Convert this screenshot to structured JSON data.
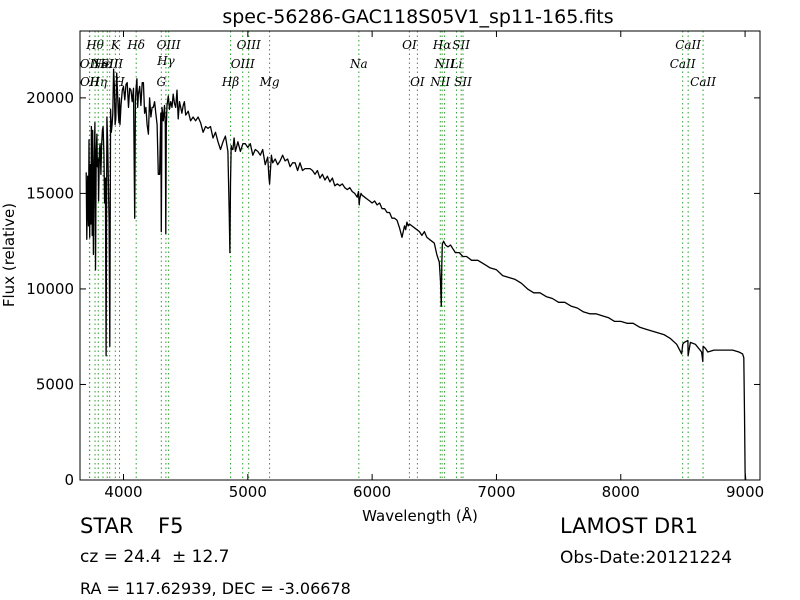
{
  "chart_data": {
    "type": "line",
    "title": "spec-56286-GAC118S05V1_sp11-165.fits",
    "xlabel": "Wavelength (Å)",
    "ylabel": "Flux (relative)",
    "xlim": [
      3650,
      9120
    ],
    "ylim": [
      0,
      23500
    ],
    "xticks": [
      4000,
      5000,
      6000,
      7000,
      8000,
      9000
    ],
    "yticks": [
      0,
      5000,
      10000,
      15000,
      20000
    ],
    "grid": false,
    "line_color": "#000000",
    "marker_color": "#2ca02c",
    "series": [
      {
        "x": [
          3700,
          3705,
          3712,
          3718,
          3722,
          3728,
          3734,
          3738,
          3742,
          3748,
          3752,
          3758,
          3764,
          3770,
          3775,
          3780,
          3786,
          3790,
          3796,
          3800,
          3806,
          3812,
          3818,
          3824,
          3830,
          3836,
          3842,
          3848,
          3854,
          3860,
          3866,
          3872,
          3878,
          3884,
          3890,
          3896,
          3902,
          3908,
          3914,
          3920,
          3926,
          3932,
          3938,
          3945,
          3952,
          3958,
          3964,
          3968,
          3972,
          3980,
          3990,
          4000,
          4010,
          4020,
          4030,
          4040,
          4050,
          4060,
          4070,
          4080,
          4090,
          4096,
          4102,
          4108,
          4114,
          4120,
          4130,
          4140,
          4150,
          4160,
          4170,
          4180,
          4190,
          4200,
          4210,
          4220,
          4230,
          4240,
          4250,
          4260,
          4270,
          4280,
          4290,
          4295,
          4300,
          4304,
          4310,
          4320,
          4330,
          4336,
          4340,
          4344,
          4350,
          4360,
          4370,
          4380,
          4390,
          4400,
          4410,
          4420,
          4430,
          4440,
          4450,
          4460,
          4470,
          4480,
          4490,
          4500,
          4520,
          4540,
          4560,
          4580,
          4600,
          4620,
          4640,
          4660,
          4680,
          4700,
          4720,
          4740,
          4760,
          4780,
          4800,
          4820,
          4840,
          4850,
          4856,
          4861,
          4866,
          4872,
          4880,
          4890,
          4900,
          4920,
          4940,
          4960,
          4980,
          5000,
          5020,
          5040,
          5060,
          5080,
          5100,
          5120,
          5140,
          5160,
          5170,
          5175,
          5180,
          5190,
          5200,
          5220,
          5240,
          5260,
          5280,
          5300,
          5320,
          5340,
          5360,
          5380,
          5400,
          5420,
          5440,
          5460,
          5480,
          5500,
          5520,
          5540,
          5560,
          5580,
          5600,
          5620,
          5640,
          5660,
          5680,
          5700,
          5720,
          5740,
          5760,
          5780,
          5800,
          5820,
          5840,
          5860,
          5880,
          5890,
          5896,
          5900,
          5910,
          5920,
          5940,
          5960,
          5980,
          6000,
          6020,
          6040,
          6060,
          6080,
          6100,
          6120,
          6140,
          6160,
          6180,
          6200,
          6220,
          6240,
          6260,
          6270,
          6280,
          6290,
          6300,
          6320,
          6340,
          6360,
          6380,
          6400,
          6420,
          6440,
          6460,
          6480,
          6500,
          6520,
          6540,
          6550,
          6556,
          6560,
          6564,
          6568,
          6575,
          6590,
          6610,
          6630,
          6650,
          6670,
          6700,
          6730,
          6760,
          6800,
          6850,
          6900,
          6950,
          7000,
          7050,
          7100,
          7150,
          7200,
          7250,
          7300,
          7350,
          7400,
          7450,
          7500,
          7550,
          7600,
          7650,
          7700,
          7750,
          7800,
          7850,
          7900,
          7950,
          8000,
          8050,
          8100,
          8150,
          8200,
          8250,
          8300,
          8350,
          8400,
          8450,
          8490,
          8498,
          8510,
          8540,
          8542,
          8560,
          8600,
          8650,
          8660,
          8662,
          8680,
          8700,
          8750,
          8800,
          8850,
          8900,
          8950,
          8980,
          8990,
          8995,
          9000,
          9005
        ],
        "y": [
          16100,
          12600,
          15900,
          13300,
          17800,
          12700,
          16500,
          13400,
          18500,
          12800,
          18300,
          11800,
          16600,
          18700,
          11000,
          17100,
          18100,
          16400,
          16800,
          14600,
          17200,
          17600,
          16000,
          17500,
          18300,
          18500,
          17100,
          14500,
          15800,
          6500,
          19000,
          17800,
          15800,
          13500,
          7000,
          19400,
          18200,
          18600,
          19200,
          21500,
          20700,
          18600,
          18900,
          21300,
          20300,
          19200,
          18700,
          20000,
          18600,
          19600,
          20400,
          20600,
          19900,
          20700,
          20800,
          19500,
          20500,
          20400,
          19800,
          20500,
          13700,
          19800,
          20600,
          21000,
          19500,
          20200,
          20600,
          19600,
          20800,
          20800,
          19200,
          19500,
          18600,
          18100,
          20000,
          19000,
          19500,
          19500,
          19800,
          19200,
          18600,
          16000,
          16000,
          17600,
          19200,
          13000,
          19500,
          18800,
          19600,
          18600,
          12900,
          18500,
          19600,
          20100,
          19400,
          19800,
          19500,
          20200,
          19700,
          19500,
          20400,
          18900,
          19800,
          19500,
          19200,
          19600,
          19800,
          19100,
          19300,
          18800,
          19000,
          18800,
          19000,
          18700,
          18200,
          18500,
          18400,
          18500,
          17900,
          18200,
          17700,
          17300,
          17700,
          18000,
          17200,
          14000,
          11900,
          15500,
          17500,
          17300,
          17300,
          17900,
          17200,
          17700,
          17200,
          17600,
          17600,
          17400,
          17600,
          17000,
          17300,
          17200,
          17000,
          17300,
          16500,
          16900,
          15800,
          15500,
          16000,
          17000,
          16600,
          16800,
          16500,
          16700,
          17000,
          16700,
          16800,
          16400,
          16600,
          16600,
          16200,
          16600,
          16200,
          16300,
          16300,
          16300,
          16200,
          16000,
          16200,
          15800,
          16000,
          15700,
          15900,
          15600,
          15800,
          15400,
          15500,
          15400,
          15500,
          15300,
          15200,
          15300,
          15100,
          15000,
          14800,
          15100,
          14400,
          14700,
          15000,
          14900,
          14800,
          14700,
          14600,
          14500,
          14600,
          14400,
          14500,
          14200,
          14200,
          14000,
          14000,
          13700,
          13700,
          13600,
          13200,
          12700,
          13300,
          13100,
          13500,
          13300,
          13400,
          13300,
          13200,
          13100,
          13000,
          12800,
          13000,
          12700,
          12600,
          12500,
          12400,
          11800,
          11400,
          10400,
          9100,
          11300,
          12300,
          12400,
          12500,
          12300,
          12200,
          12300,
          12100,
          11900,
          11900,
          11700,
          11700,
          11500,
          11500,
          11300,
          11100,
          11000,
          10700,
          10600,
          10500,
          10300,
          10000,
          9800,
          9800,
          9600,
          9500,
          9300,
          9300,
          9100,
          9000,
          8800,
          8700,
          8700,
          8600,
          8500,
          8300,
          8300,
          8200,
          8200,
          8000,
          7900,
          7800,
          7700,
          7600,
          7400,
          7100,
          6600,
          7100,
          7200,
          7300,
          6500,
          7200,
          7100,
          6700,
          6200,
          7000,
          6900,
          6700,
          6800,
          6800,
          6800,
          6800,
          6700,
          6600,
          6400,
          3500,
          400,
          0
        ]
      }
    ],
    "line_markers": [
      {
        "x": 3726,
        "label": "OII",
        "row": 3
      },
      {
        "x": 3728,
        "label": "OII",
        "row": 4
      },
      {
        "x": 3771,
        "label": "Hθ",
        "row": 1
      },
      {
        "x": 3797,
        "label": "Hη",
        "row": 4
      },
      {
        "x": 3835,
        "label": "Hε",
        "row": 3
      },
      {
        "x": 3869,
        "label": "NeIII",
        "row": 3
      },
      {
        "x": 3889,
        "label": "SII",
        "row": 3
      },
      {
        "x": 3934,
        "label": "K",
        "row": 1
      },
      {
        "x": 3968,
        "label": "H",
        "row": 4
      },
      {
        "x": 4102,
        "label": "Hδ",
        "row": 1
      },
      {
        "x": 4304,
        "label": "G",
        "row": 4
      },
      {
        "x": 4341,
        "label": "Hγ",
        "row": 2
      },
      {
        "x": 4363,
        "label": "OIII",
        "row": 1
      },
      {
        "x": 4861,
        "label": "Hβ",
        "row": 4
      },
      {
        "x": 4959,
        "label": "OIII",
        "row": 3
      },
      {
        "x": 5007,
        "label": "OIII",
        "row": 1
      },
      {
        "x": 5175,
        "label": "Mg",
        "row": 4
      },
      {
        "x": 5893,
        "label": "Na",
        "row": 3
      },
      {
        "x": 6300,
        "label": "OI",
        "row": 1
      },
      {
        "x": 6364,
        "label": "OI",
        "row": 4
      },
      {
        "x": 6548,
        "label": "NII",
        "row": 4
      },
      {
        "x": 6563,
        "label": "Hα",
        "row": 1
      },
      {
        "x": 6583,
        "label": "NII",
        "row": 3
      },
      {
        "x": 6678,
        "label": "Li",
        "row": 3
      },
      {
        "x": 6716,
        "label": "SII",
        "row": 1
      },
      {
        "x": 6731,
        "label": "SII",
        "row": 4
      },
      {
        "x": 8498,
        "label": "CaII",
        "row": 3
      },
      {
        "x": 8542,
        "label": "CaII",
        "row": 1
      },
      {
        "x": 8662,
        "label": "CaII",
        "row": 4
      }
    ]
  },
  "info": {
    "class_label": "STAR",
    "subclass_label": "F5",
    "survey_label": "LAMOST DR1",
    "cz_text": "cz = 24.4  ± 12.7",
    "obs_date": "Obs-Date:20121224",
    "coords": "RA = 117.62939, DEC = -3.06678"
  }
}
